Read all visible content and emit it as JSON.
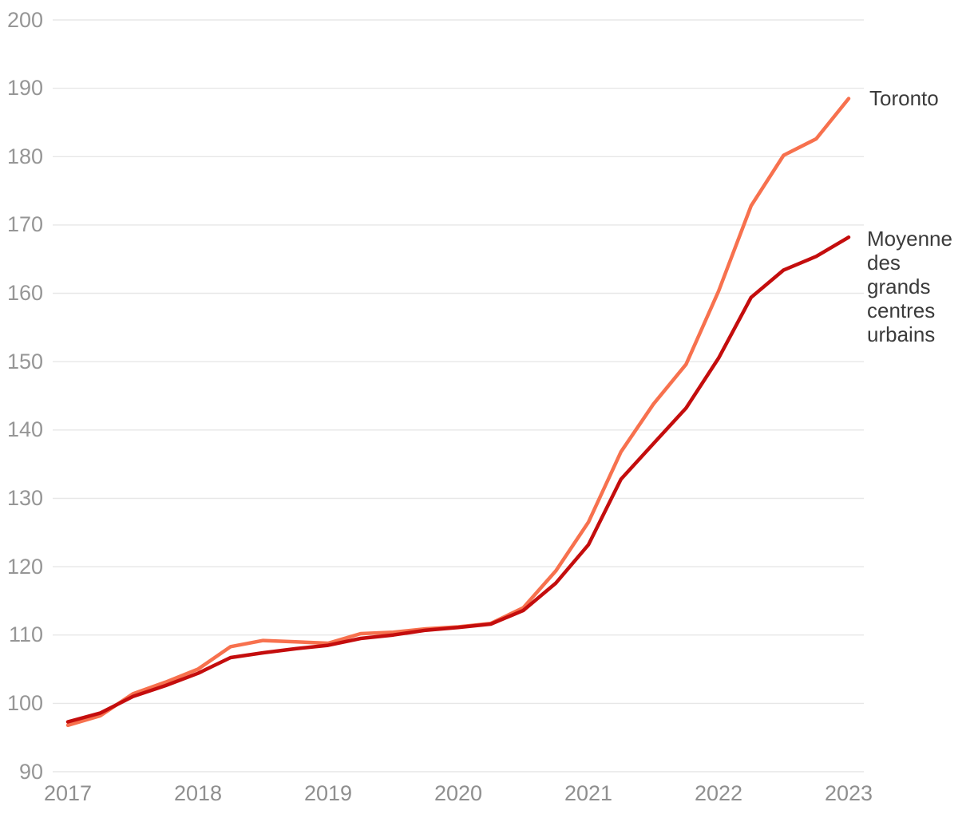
{
  "chart_data": {
    "type": "line",
    "title": "",
    "xlabel": "",
    "ylabel": "",
    "x": [
      2017.0,
      2017.25,
      2017.5,
      2017.75,
      2018.0,
      2018.25,
      2018.5,
      2018.75,
      2019.0,
      2019.25,
      2019.5,
      2019.75,
      2020.0,
      2020.25,
      2020.5,
      2020.75,
      2021.0,
      2021.25,
      2021.5,
      2021.75,
      2022.0,
      2022.25,
      2022.5,
      2022.75,
      2023.0
    ],
    "series": [
      {
        "name": "Toronto",
        "color": "#F7714E",
        "values": [
          96.8,
          98.2,
          101.4,
          103.1,
          105.0,
          108.3,
          109.2,
          109.0,
          108.8,
          110.2,
          110.4,
          110.9,
          111.2,
          111.7,
          114.0,
          119.4,
          126.5,
          136.8,
          143.8,
          149.6,
          160.3,
          172.8,
          180.2,
          182.6,
          188.5
        ]
      },
      {
        "name": "Moyenne des grands centres urbains",
        "color": "#C40D0D",
        "values": [
          97.3,
          98.6,
          101.0,
          102.6,
          104.4,
          106.7,
          107.4,
          108.0,
          108.5,
          109.5,
          110.0,
          110.7,
          111.1,
          111.6,
          113.6,
          117.6,
          123.2,
          132.8,
          138.0,
          143.2,
          150.5,
          159.4,
          163.4,
          165.4,
          168.2
        ]
      }
    ],
    "x_tick_labels": [
      "2017",
      "2018",
      "2019",
      "2020",
      "2021",
      "2022",
      "2023"
    ],
    "x_tick_values": [
      2017,
      2018,
      2019,
      2020,
      2021,
      2022,
      2023
    ],
    "y_tick_labels": [
      "90",
      "100",
      "110",
      "120",
      "130",
      "140",
      "150",
      "160",
      "170",
      "180",
      "190",
      "200"
    ],
    "y_tick_values": [
      90,
      100,
      110,
      120,
      130,
      140,
      150,
      160,
      170,
      180,
      190,
      200
    ],
    "ylim": [
      90,
      200
    ],
    "xlim": [
      2017,
      2023
    ],
    "grid": "horizontal",
    "grid_color": "#E7E7E7",
    "background_color": "#FFFFFF",
    "axis_text_color": "#969696",
    "legend_text_color": "#3B3B3B",
    "legend_position": "right-of-line-ends"
  }
}
